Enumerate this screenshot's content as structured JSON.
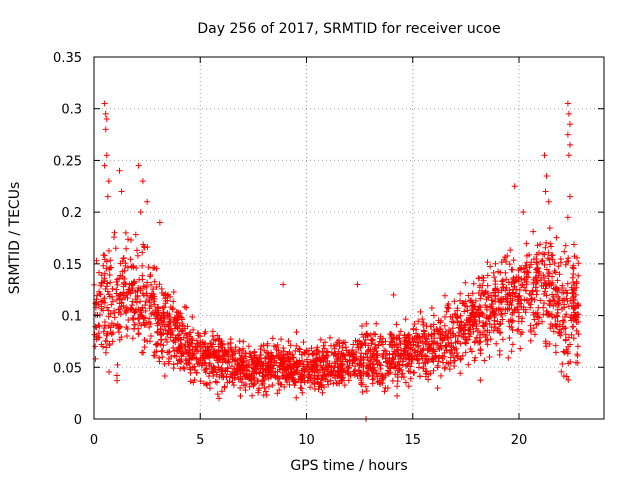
{
  "chart_data": {
    "type": "scatter",
    "title": "Day 256 of 2017, SRMTID for receiver ucoe",
    "xlabel": "GPS time / hours",
    "ylabel": "SRMTID / TECUs",
    "xlim": [
      0,
      24
    ],
    "ylim": [
      0,
      0.35
    ],
    "x_ticks": [
      0,
      5,
      10,
      15,
      20
    ],
    "x_tick_labels": [
      "0",
      "5",
      "10",
      "15",
      "20"
    ],
    "y_ticks": [
      0,
      0.05,
      0.1,
      0.15,
      0.2,
      0.25,
      0.3,
      0.35
    ],
    "y_tick_labels": [
      "0",
      "0.05",
      "0.1",
      "0.15",
      "0.2",
      "0.25",
      "0.3",
      "0.35"
    ],
    "grid": true,
    "marker": "plus",
    "color": "#ff0000",
    "series": [
      {
        "name": "SRMTID",
        "profile": {
          "x": [
            0.0,
            0.5,
            1.0,
            1.5,
            2.0,
            2.5,
            3.0,
            3.5,
            4.0,
            5.0,
            6.0,
            7.0,
            8.0,
            9.0,
            10.0,
            11.0,
            12.0,
            13.0,
            14.0,
            15.0,
            16.0,
            17.0,
            17.5,
            18.0,
            18.5,
            19.0,
            19.5,
            20.0,
            20.5,
            21.0,
            21.5,
            22.0,
            22.5,
            22.8
          ],
          "median": [
            0.1,
            0.11,
            0.11,
            0.12,
            0.12,
            0.11,
            0.1,
            0.085,
            0.075,
            0.06,
            0.055,
            0.05,
            0.05,
            0.05,
            0.05,
            0.05,
            0.055,
            0.06,
            0.06,
            0.065,
            0.07,
            0.08,
            0.09,
            0.1,
            0.105,
            0.11,
            0.115,
            0.12,
            0.125,
            0.13,
            0.125,
            0.11,
            0.1,
            0.1
          ],
          "spread": [
            0.04,
            0.05,
            0.05,
            0.05,
            0.05,
            0.045,
            0.04,
            0.035,
            0.03,
            0.025,
            0.025,
            0.02,
            0.02,
            0.02,
            0.02,
            0.02,
            0.02,
            0.025,
            0.025,
            0.025,
            0.03,
            0.03,
            0.035,
            0.035,
            0.04,
            0.04,
            0.04,
            0.04,
            0.04,
            0.04,
            0.045,
            0.05,
            0.05,
            0.04
          ]
        },
        "n_points": 2600,
        "peaks": [
          {
            "x": 0.5,
            "y": 0.305
          },
          {
            "x": 0.55,
            "y": 0.295
          },
          {
            "x": 0.6,
            "y": 0.29
          },
          {
            "x": 0.55,
            "y": 0.28
          },
          {
            "x": 0.6,
            "y": 0.255
          },
          {
            "x": 0.5,
            "y": 0.245
          },
          {
            "x": 0.7,
            "y": 0.23
          },
          {
            "x": 0.65,
            "y": 0.215
          },
          {
            "x": 1.2,
            "y": 0.24
          },
          {
            "x": 1.3,
            "y": 0.22
          },
          {
            "x": 1.5,
            "y": 0.18
          },
          {
            "x": 2.1,
            "y": 0.245
          },
          {
            "x": 2.3,
            "y": 0.23
          },
          {
            "x": 2.5,
            "y": 0.21
          },
          {
            "x": 2.2,
            "y": 0.2
          },
          {
            "x": 3.1,
            "y": 0.19
          },
          {
            "x": 8.9,
            "y": 0.13
          },
          {
            "x": 12.4,
            "y": 0.13
          },
          {
            "x": 12.8,
            "y": 0.0
          },
          {
            "x": 14.1,
            "y": 0.12
          },
          {
            "x": 19.8,
            "y": 0.225
          },
          {
            "x": 20.2,
            "y": 0.2
          },
          {
            "x": 21.2,
            "y": 0.255
          },
          {
            "x": 21.3,
            "y": 0.235
          },
          {
            "x": 21.25,
            "y": 0.22
          },
          {
            "x": 21.4,
            "y": 0.21
          },
          {
            "x": 22.3,
            "y": 0.305
          },
          {
            "x": 22.35,
            "y": 0.295
          },
          {
            "x": 22.4,
            "y": 0.285
          },
          {
            "x": 22.3,
            "y": 0.275
          },
          {
            "x": 22.4,
            "y": 0.265
          },
          {
            "x": 22.35,
            "y": 0.255
          },
          {
            "x": 22.4,
            "y": 0.215
          },
          {
            "x": 22.3,
            "y": 0.195
          }
        ]
      }
    ]
  }
}
